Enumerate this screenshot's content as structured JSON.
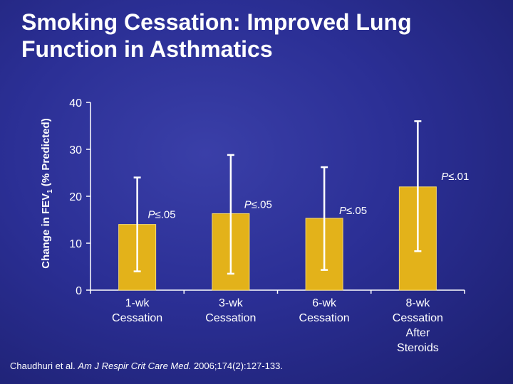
{
  "title": "Smoking Cessation: Improved Lung Function in Asthmatics",
  "ylabel_main": "Change in FEV",
  "ylabel_sub": "1",
  "ylabel_tail": " (% Predicted)",
  "citation": {
    "authors": "Chaudhuri et al. ",
    "journal": "Am J Respir Crit Care Med.",
    "details": " 2006;174(2):127-133."
  },
  "colors": {
    "bar": "#e3b21a",
    "bar_edge": "#f6d86b",
    "axis": "#ffffff"
  },
  "chart_data": {
    "type": "bar",
    "title": "Smoking Cessation: Improved Lung Function in Asthmatics",
    "ylabel": "Change in FEV1 (% Predicted)",
    "ylim": [
      0,
      40
    ],
    "yticks": [
      0,
      10,
      20,
      30,
      40
    ],
    "ytick_labels": [
      "0",
      "10",
      "20",
      "30",
      "40"
    ],
    "categories": [
      [
        "1-wk",
        "Cessation"
      ],
      [
        "3-wk",
        "Cessation"
      ],
      [
        "6-wk",
        "Cessation"
      ],
      [
        "8-wk",
        "Cessation",
        "After",
        "Steroids"
      ]
    ],
    "values": [
      14,
      16.3,
      15.3,
      22
    ],
    "error_low": [
      4,
      3.5,
      4.3,
      8.3
    ],
    "error_high": [
      24,
      28.8,
      26.2,
      36
    ],
    "p_values": [
      "P≤.05",
      "P≤.05",
      "P≤.05",
      "P≤.01"
    ]
  }
}
